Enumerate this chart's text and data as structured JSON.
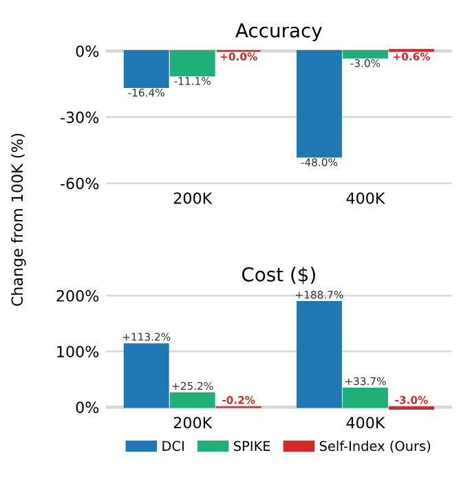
{
  "chart_data": [
    {
      "type": "bar",
      "title": "Accuracy",
      "ylabel": "Change from 100K (%)",
      "categories": [
        "200K",
        "400K"
      ],
      "ylim": [
        -61,
        1
      ],
      "yticks": [
        {
          "value": 0,
          "label": "0%"
        },
        {
          "value": -30,
          "label": "-30%"
        },
        {
          "value": -60,
          "label": "-60%"
        }
      ],
      "grid": "y",
      "series": [
        {
          "color": "#1f77b4",
          "values": [
            -16.4,
            -48.0
          ],
          "value_labels": [
            "-16.4%",
            "-48.0%"
          ]
        },
        {
          "color": "#1fb07a",
          "values": [
            -11.1,
            -3.0
          ],
          "value_labels": [
            "-11.1%",
            "-3.0%"
          ]
        },
        {
          "color": "#d62728",
          "values": [
            0.0,
            0.6
          ],
          "value_labels": [
            "+0.0%",
            "+0.6%"
          ]
        }
      ]
    },
    {
      "type": "bar",
      "title": "Cost ($)",
      "categories": [
        "200K",
        "400K"
      ],
      "ylim": [
        -5,
        205
      ],
      "yticks": [
        {
          "value": 0,
          "label": "0%"
        },
        {
          "value": 100,
          "label": "100%"
        },
        {
          "value": 200,
          "label": "200%"
        }
      ],
      "grid": "y",
      "legend": "bottom",
      "series": [
        {
          "name": "DCI",
          "color": "#1f77b4",
          "values": [
            113.2,
            188.7
          ],
          "value_labels": [
            "+113.2%",
            "+188.7%"
          ]
        },
        {
          "name": "SPIKE",
          "color": "#1fb07a",
          "values": [
            25.2,
            33.7
          ],
          "value_labels": [
            "+25.2%",
            "+33.7%"
          ]
        },
        {
          "name": "Self-Index (Ours)",
          "color": "#d62728",
          "values": [
            -0.2,
            -3.0
          ],
          "value_labels": [
            "-0.2%",
            "-3.0%"
          ]
        }
      ]
    }
  ]
}
